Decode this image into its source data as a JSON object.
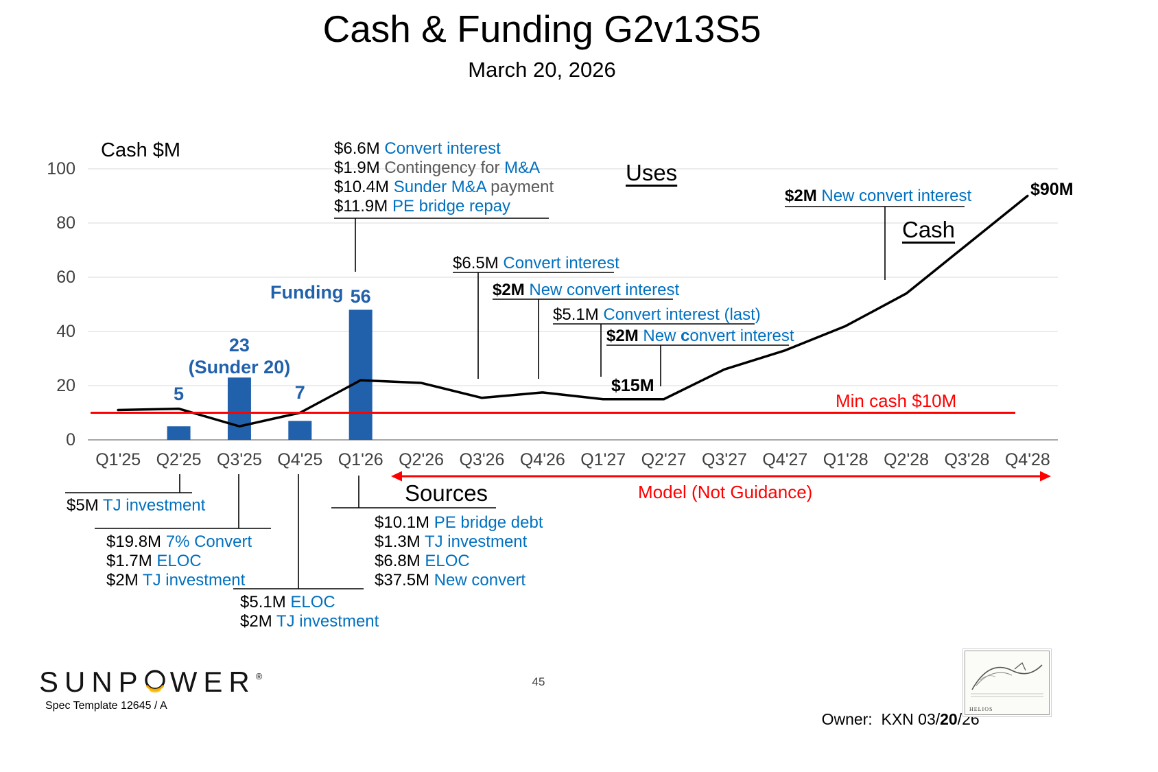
{
  "slide": {
    "title": "Cash & Funding G2v13S5",
    "subtitle": "March 20, 2026",
    "page_number": "45",
    "owner": {
      "prefix": "Owner:  KXN 03/",
      "bold": "20",
      "suffix": "/26"
    },
    "logo": {
      "left": "SUNP",
      "right": "WER",
      "reg": "®",
      "tagline": "Spec Template 12645 / A"
    },
    "stamp_label": "HELIOS"
  },
  "labels": {
    "uses": "Uses",
    "cash": "Cash",
    "sources": "Sources"
  },
  "chart_data": {
    "type": "combo",
    "title": "Cash & Funding G2v13S5",
    "y_axis_title": "Cash $M",
    "ylim": [
      0,
      100
    ],
    "yticks": [
      0,
      20,
      40,
      60,
      80,
      100
    ],
    "grid": true,
    "categories": [
      "Q1'25",
      "Q2'25",
      "Q3'25",
      "Q4'25",
      "Q1'26",
      "Q2'26",
      "Q3'26",
      "Q4'26",
      "Q1'27",
      "Q2'27",
      "Q3'27",
      "Q4'27",
      "Q1'28",
      "Q2'28",
      "Q3'28",
      "Q4'28"
    ],
    "series": [
      {
        "name": "Funding",
        "type": "bar",
        "color": "#2161AC",
        "points": [
          {
            "category": "Q2'25",
            "value": 5
          },
          {
            "category": "Q3'25",
            "value": 23,
            "note": "(Sunder 20)"
          },
          {
            "category": "Q4'25",
            "value": 7
          },
          {
            "category": "Q1'26",
            "value": 56,
            "display_height": 48
          }
        ]
      },
      {
        "name": "Cash",
        "type": "line",
        "color": "#000000",
        "values": [
          11,
          11.5,
          5,
          10,
          22,
          21,
          15.5,
          17.5,
          15,
          15,
          26,
          33,
          42,
          54,
          72,
          90
        ]
      }
    ],
    "reference_line": {
      "value": 10,
      "label": "Min cash $10M",
      "color": "#FF0000"
    },
    "point_labels": [
      {
        "category": "Q2'27",
        "text": "$15M"
      },
      {
        "category": "Q4'28",
        "text": "$90M"
      }
    ],
    "model_arrow_label": "Model (Not Guidance)"
  },
  "annotations": {
    "uses_q126": [
      [
        [
          "$6.6M ",
          "k"
        ],
        [
          "Convert interest",
          "b"
        ]
      ],
      [
        [
          "$1.9M ",
          "k"
        ],
        [
          "Contingency for ",
          "g"
        ],
        [
          "M&A",
          "b"
        ]
      ],
      [
        [
          "$10.4M ",
          "k"
        ],
        [
          "Sunder M&A",
          "b"
        ],
        [
          " payment",
          "g"
        ]
      ],
      [
        [
          "$11.9M ",
          "k"
        ],
        [
          "PE bridge repay",
          "b"
        ]
      ]
    ],
    "ann_65": [
      [
        [
          "$6.5M ",
          "k"
        ],
        [
          "Convert interest",
          "b"
        ]
      ]
    ],
    "ann_2m_1": [
      [
        [
          "$2M ",
          "kb"
        ],
        [
          "New convert interest",
          "b"
        ]
      ]
    ],
    "ann_51": [
      [
        [
          "$5.1M ",
          "k"
        ],
        [
          "Convert interest",
          "b"
        ],
        [
          " (last)",
          "b"
        ]
      ]
    ],
    "ann_2m_2": [
      [
        [
          "$2M ",
          "kb"
        ],
        [
          "New ",
          "b"
        ],
        [
          "c",
          "bb"
        ],
        [
          "onvert interest",
          "b"
        ]
      ]
    ],
    "ann_2m_3": [
      [
        [
          "$2M ",
          "kb"
        ],
        [
          "New convert interest",
          "b"
        ]
      ]
    ],
    "sources_q225": [
      [
        [
          "$5M ",
          "k"
        ],
        [
          "TJ investment",
          "b"
        ]
      ]
    ],
    "sources_q325": [
      [
        [
          "$19.8M ",
          "k"
        ],
        [
          "7% Convert",
          "b"
        ]
      ],
      [
        [
          "$1.7M ",
          "k"
        ],
        [
          "ELOC",
          "b"
        ]
      ],
      [
        [
          "$2M ",
          "k"
        ],
        [
          "TJ investment",
          "b"
        ]
      ]
    ],
    "sources_q425": [
      [
        [
          "$5.1M ",
          "k"
        ],
        [
          "ELOC",
          "b"
        ]
      ],
      [
        [
          "$2M ",
          "k"
        ],
        [
          "TJ investment",
          "b"
        ]
      ]
    ],
    "sources_q126": [
      [
        [
          "$10.1M ",
          "k"
        ],
        [
          "PE bridge debt",
          "b"
        ]
      ],
      [
        [
          "$1.3M ",
          "k"
        ],
        [
          "TJ investment",
          "b"
        ]
      ],
      [
        [
          "$6.8M ",
          "k"
        ],
        [
          "ELOC",
          "b"
        ]
      ],
      [
        [
          "$37.5M ",
          "k"
        ],
        [
          "New convert",
          "b"
        ]
      ]
    ]
  }
}
